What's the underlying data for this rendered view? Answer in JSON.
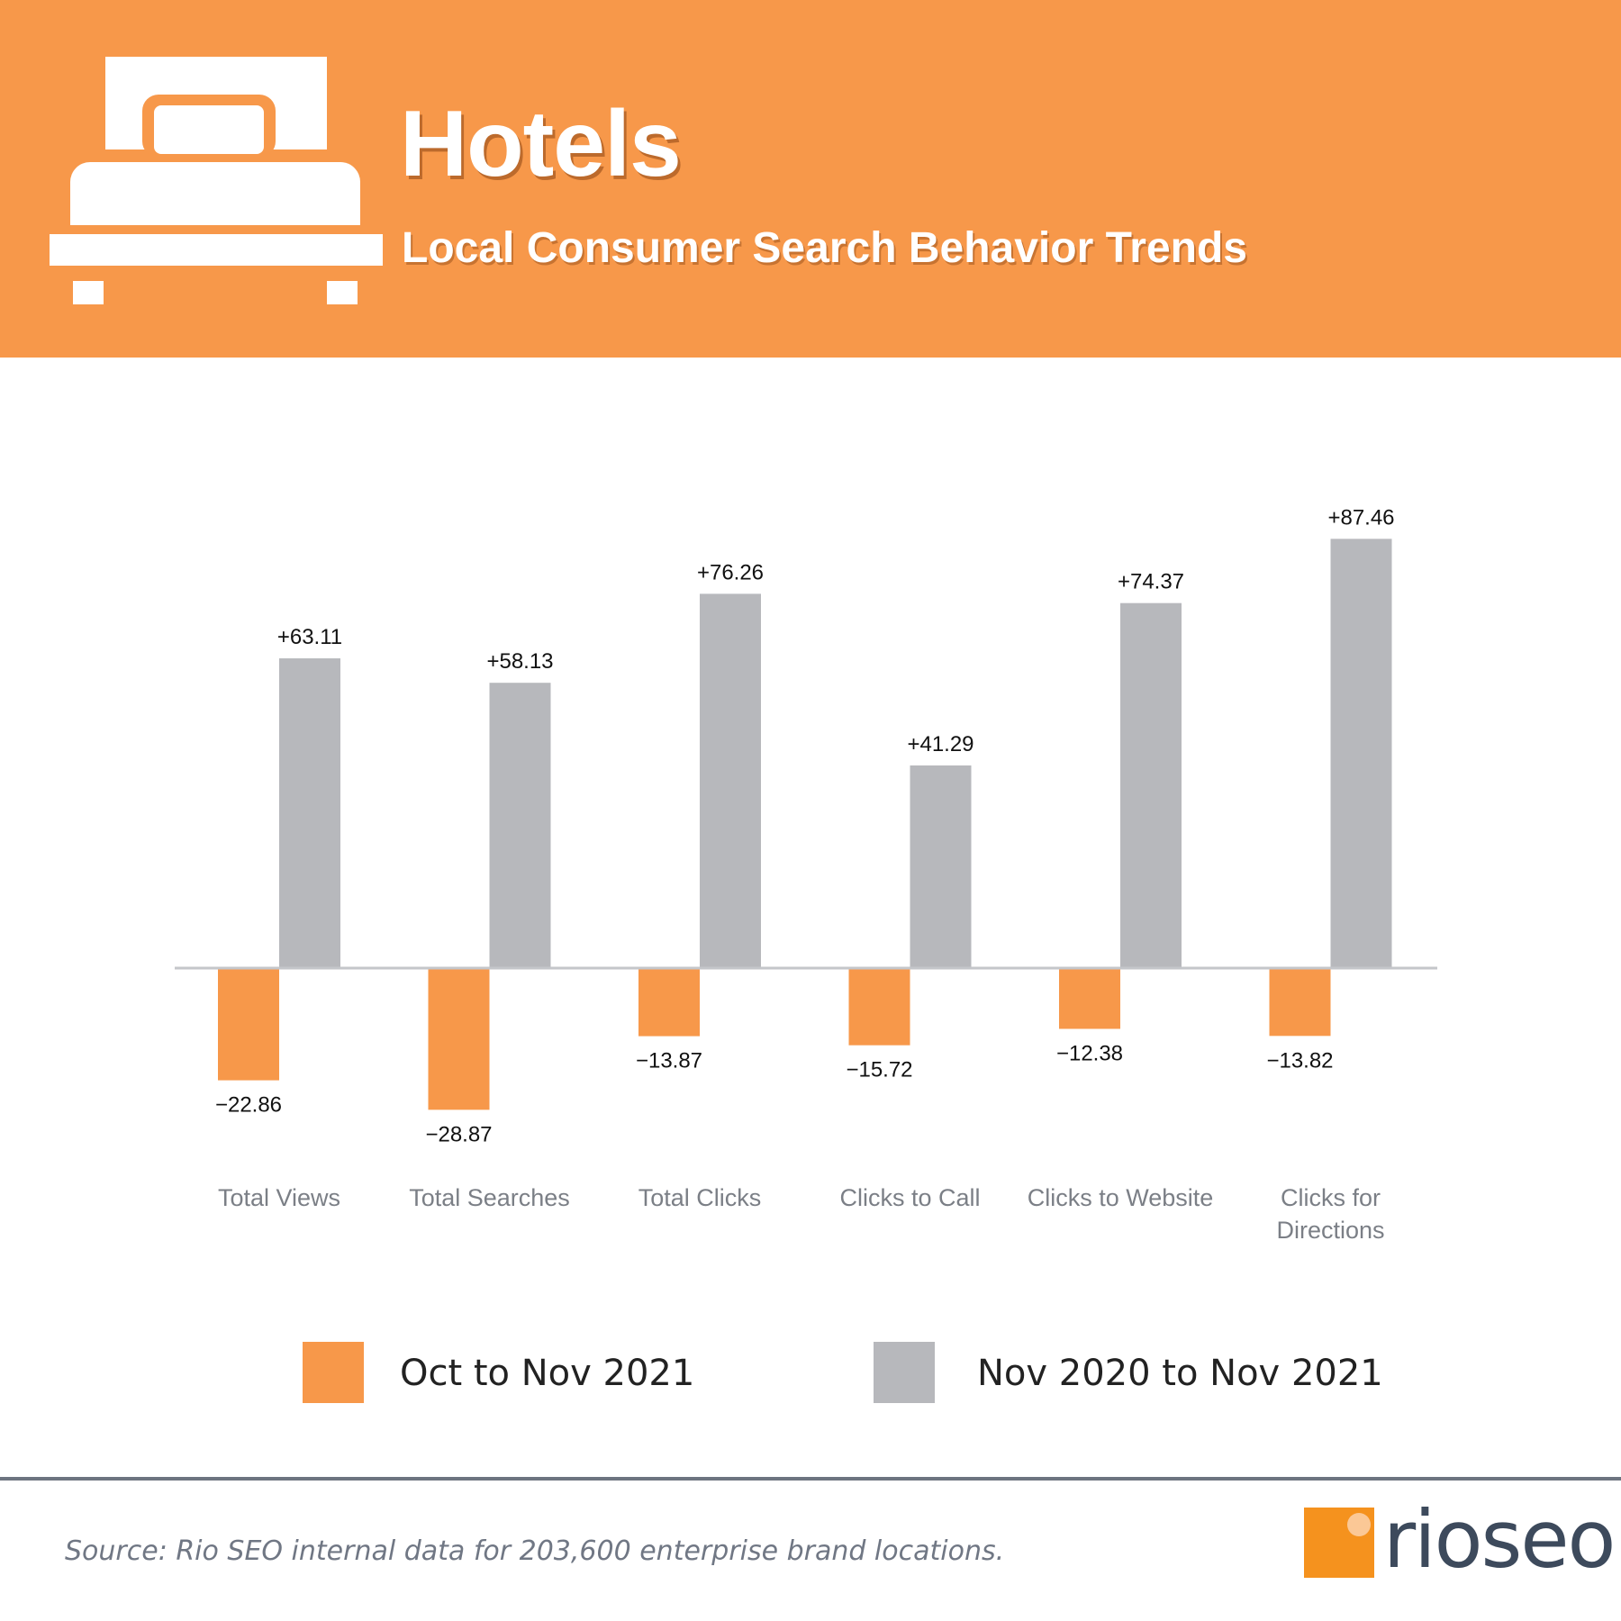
{
  "header": {
    "title": "Hotels",
    "subtitle": "Local Consumer Search Behavior Trends",
    "icon": "bed-icon",
    "background_color": "#f7984a"
  },
  "chart_data": {
    "type": "bar",
    "categories": [
      [
        "Total Views"
      ],
      [
        "Total Searches"
      ],
      [
        "Total Clicks"
      ],
      [
        "Clicks to Call"
      ],
      [
        "Clicks to Website"
      ],
      [
        "Clicks for",
        "Directions"
      ]
    ],
    "series": [
      {
        "name": "Oct to Nov 2021",
        "color": "#f7984a",
        "values": [
          -22.86,
          -28.87,
          -13.87,
          -15.72,
          -12.38,
          -13.82
        ],
        "labels": [
          "−22.86",
          "−28.87",
          "−13.87",
          "−15.72",
          "−12.38",
          "−13.82"
        ]
      },
      {
        "name": "Nov 2020 to Nov 2021",
        "color": "#b7b8bc",
        "values": [
          63.11,
          58.13,
          76.26,
          41.29,
          74.37,
          87.46
        ],
        "labels": [
          "+63.11",
          "+58.13",
          "+76.26",
          "+41.29",
          "+74.37",
          "+87.46"
        ]
      }
    ],
    "title": "",
    "xlabel": "",
    "ylabel": "",
    "grid": false,
    "legend_position": "bottom"
  },
  "legend": [
    {
      "label": "Oct to Nov 2021",
      "color": "#f7984a"
    },
    {
      "label": "Nov 2020 to Nov 2021",
      "color": "#b7b8bc"
    }
  ],
  "footer": {
    "source": "Source: Rio SEO internal data for 203,600 enterprise brand locations.",
    "logo_text": "rioseo",
    "logo_accent": "#f5921e"
  }
}
